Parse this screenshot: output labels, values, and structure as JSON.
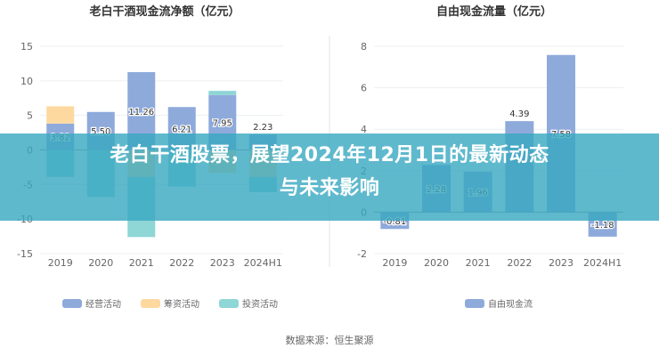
{
  "banner": {
    "line1": "老白干酒股票，展望2024年12月1日的最新动态",
    "line2": "与未来影响"
  },
  "source": "数据来源：恒生聚源",
  "chart_data": [
    {
      "type": "bar",
      "stacked": true,
      "title": "老白干酒现金流净额（亿元）",
      "categories": [
        "2019",
        "2020",
        "2021",
        "2022",
        "2023",
        "2024H1"
      ],
      "ylim": [
        -15,
        15
      ],
      "yticks": [
        15,
        10,
        5,
        0,
        -5,
        -10,
        -15
      ],
      "grid": true,
      "legend": "bottom",
      "series": [
        {
          "name": "经营活动",
          "color": "#8eaadb",
          "values": [
            3.82,
            5.5,
            11.26,
            6.21,
            7.95,
            2.23
          ],
          "labels": [
            "3.82",
            "5.50",
            "11.26",
            "6.21",
            "7.95",
            "2.23"
          ]
        },
        {
          "name": "筹资活动",
          "color": "#fdd9a0",
          "values": [
            2.5,
            0,
            -3.9,
            0,
            -3.3,
            -3.9
          ]
        },
        {
          "name": "投资活动",
          "color": "#8fd6d6",
          "values": [
            -3.9,
            -6.8,
            -8.7,
            -5.3,
            0.6,
            -2.2
          ]
        }
      ]
    },
    {
      "type": "bar",
      "title": "自由现金流量（亿元）",
      "categories": [
        "2019",
        "2020",
        "2021",
        "2022",
        "2023",
        "2024H1"
      ],
      "ylim": [
        -2,
        8
      ],
      "yticks": [
        8,
        6,
        4,
        2,
        0,
        -2
      ],
      "grid": true,
      "legend": "bottom",
      "series": [
        {
          "name": "自由现金流",
          "color": "#8eaadb",
          "values": [
            -0.81,
            2.28,
            1.96,
            4.39,
            7.58,
            -1.18
          ],
          "labels": [
            "-0.81",
            "2.28",
            "1.96",
            "4.39",
            "7.58",
            "-1.18"
          ]
        }
      ]
    }
  ]
}
